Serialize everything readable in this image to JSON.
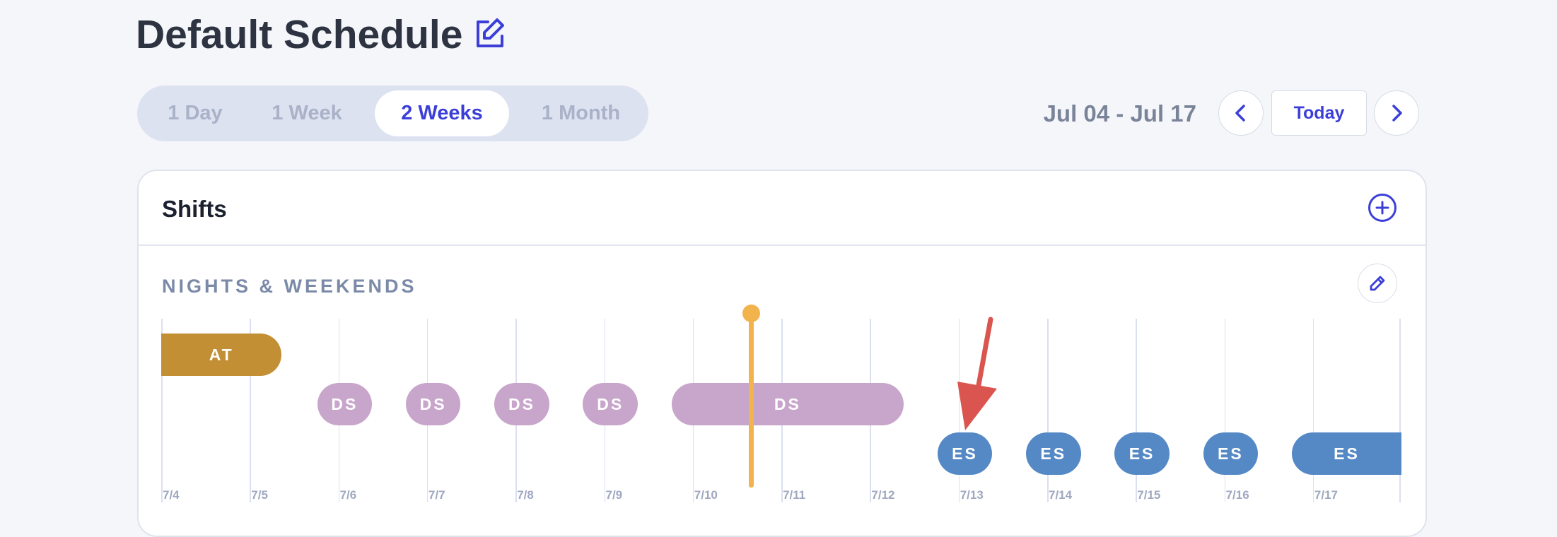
{
  "header": {
    "title": "Default Schedule"
  },
  "range": {
    "options": [
      "1 Day",
      "1 Week",
      "2 Weeks",
      "1 Month"
    ],
    "selected": "2 Weeks"
  },
  "date_nav": {
    "range_label": "Jul 04 - Jul 17",
    "today_label": "Today"
  },
  "card": {
    "title": "Shifts",
    "section": {
      "title": "NIGHTS & WEEKENDS",
      "days": [
        "7/4",
        "7/5",
        "7/6",
        "7/7",
        "7/8",
        "7/9",
        "7/10",
        "7/11",
        "7/12",
        "7/13",
        "7/14",
        "7/15",
        "7/16",
        "7/17"
      ],
      "shifts": [
        {
          "label": "AT",
          "color": "#c28f35",
          "start_day": 0,
          "end_day": 1.36
        },
        {
          "label": "DS",
          "color": "#c8a5cb",
          "start_day": 1.76,
          "end_day": 2.38
        },
        {
          "label": "DS",
          "color": "#c8a5cb",
          "start_day": 2.76,
          "end_day": 3.38
        },
        {
          "label": "DS",
          "color": "#c8a5cb",
          "start_day": 3.76,
          "end_day": 4.38
        },
        {
          "label": "DS",
          "color": "#c8a5cb",
          "start_day": 4.76,
          "end_day": 5.38
        },
        {
          "label": "DS",
          "color": "#c8a5cb",
          "start_day": 5.76,
          "end_day": 8.38
        },
        {
          "label": "ES",
          "color": "#5589c6",
          "start_day": 8.76,
          "end_day": 9.38
        },
        {
          "label": "ES",
          "color": "#5589c6",
          "start_day": 9.76,
          "end_day": 10.38
        },
        {
          "label": "ES",
          "color": "#5589c6",
          "start_day": 10.76,
          "end_day": 11.38
        },
        {
          "label": "ES",
          "color": "#5589c6",
          "start_day": 11.76,
          "end_day": 12.38
        },
        {
          "label": "ES",
          "color": "#5589c6",
          "start_day": 12.76,
          "end_day": 14.0
        }
      ],
      "current_time_day": 6.66
    }
  },
  "colors": {
    "accent": "#3b3fd8",
    "now_line": "#f2b24c",
    "annotation_arrow": "#db5550"
  },
  "icons": {
    "edit_title": "edit-square-icon",
    "prev": "chevron-left-icon",
    "next": "chevron-right-icon",
    "add": "plus-circle-icon",
    "edit_section": "pencil-icon"
  }
}
